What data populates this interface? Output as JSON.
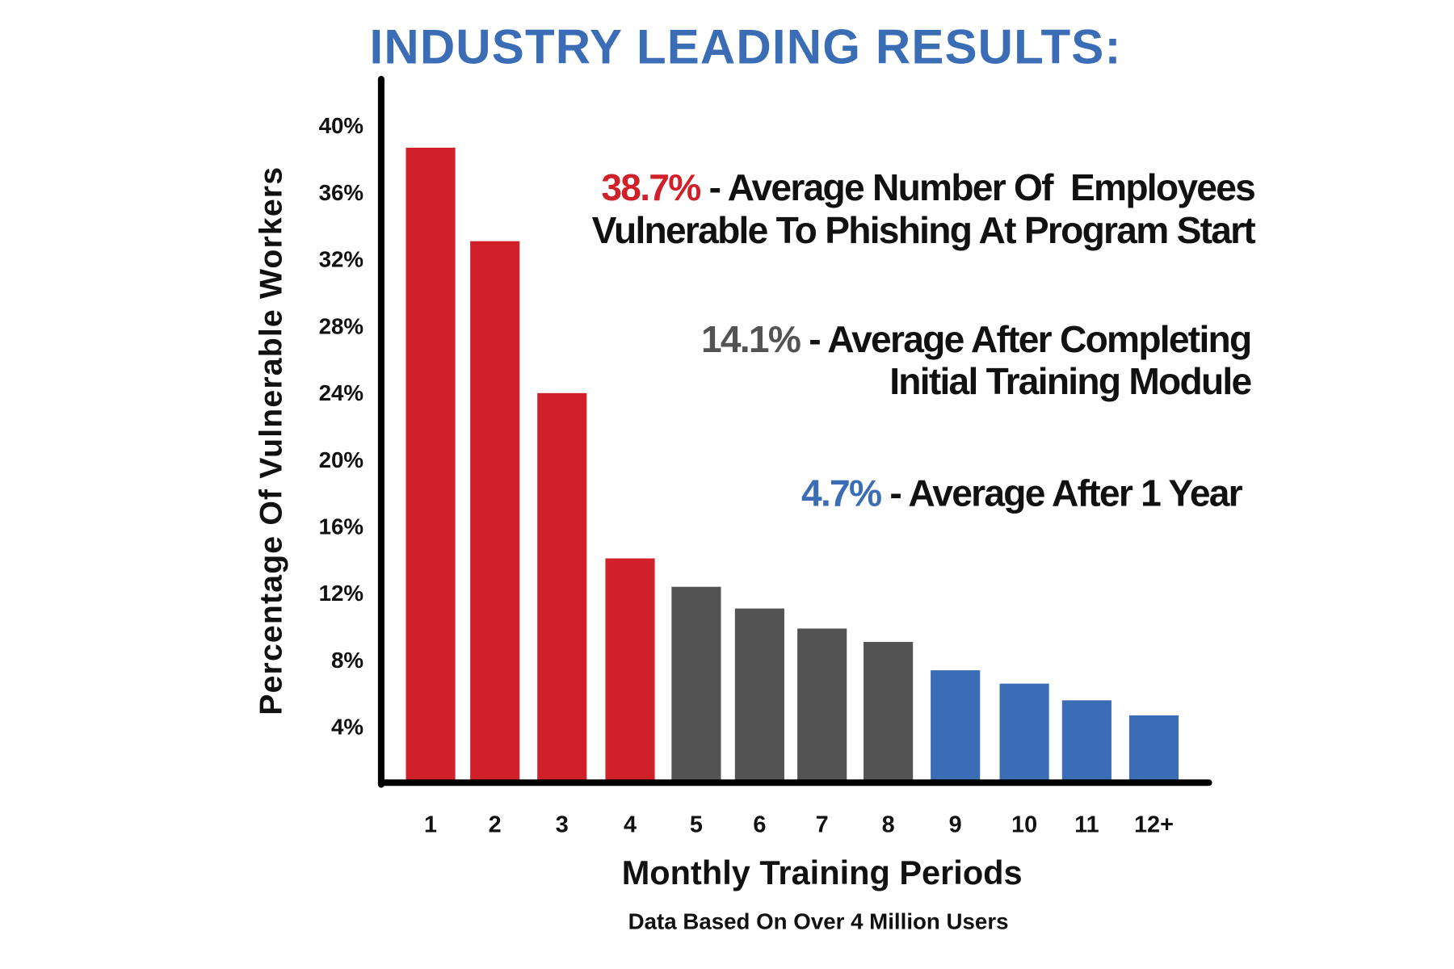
{
  "chart_data": {
    "type": "bar",
    "title": "INDUSTRY LEADING RESULTS:",
    "xlabel": "Monthly Training Periods",
    "ylabel": "Percentage Of Vulnerable Workers",
    "subtitle": "Data Based On Over 4 Million Users",
    "categories": [
      "1",
      "2",
      "3",
      "4",
      "5",
      "6",
      "7",
      "8",
      "9",
      "10",
      "11",
      "12+"
    ],
    "values": [
      38.7,
      33.1,
      24.0,
      14.1,
      12.4,
      11.1,
      9.9,
      9.1,
      7.4,
      6.6,
      5.6,
      4.7
    ],
    "bar_colors": [
      "#d0202a",
      "#d0202a",
      "#d0202a",
      "#d0202a",
      "#535353",
      "#535353",
      "#535353",
      "#535353",
      "#3a6db5",
      "#3a6db5",
      "#3a6db5",
      "#3a6db5"
    ],
    "yticks": [
      "4%",
      "8%",
      "12%",
      "16%",
      "20%",
      "24%",
      "28%",
      "32%",
      "36%",
      "40%"
    ],
    "ytick_values": [
      4,
      8,
      12,
      16,
      20,
      24,
      28,
      32,
      36,
      40
    ],
    "ylim": [
      0,
      42
    ],
    "grid": false,
    "annotations": [
      {
        "value": "38.7%",
        "color": "#d0202a",
        "line1": " - Average Number Of  Employees",
        "line2": "Vulnerable To Phishing At Program Start"
      },
      {
        "value": "14.1%",
        "color": "#535353",
        "line1": " - Average After Completing",
        "line2": "Initial Training Module"
      },
      {
        "value": "4.7%",
        "color": "#3a6db5",
        "line1": " -  Average After 1 Year",
        "line2": ""
      }
    ]
  }
}
